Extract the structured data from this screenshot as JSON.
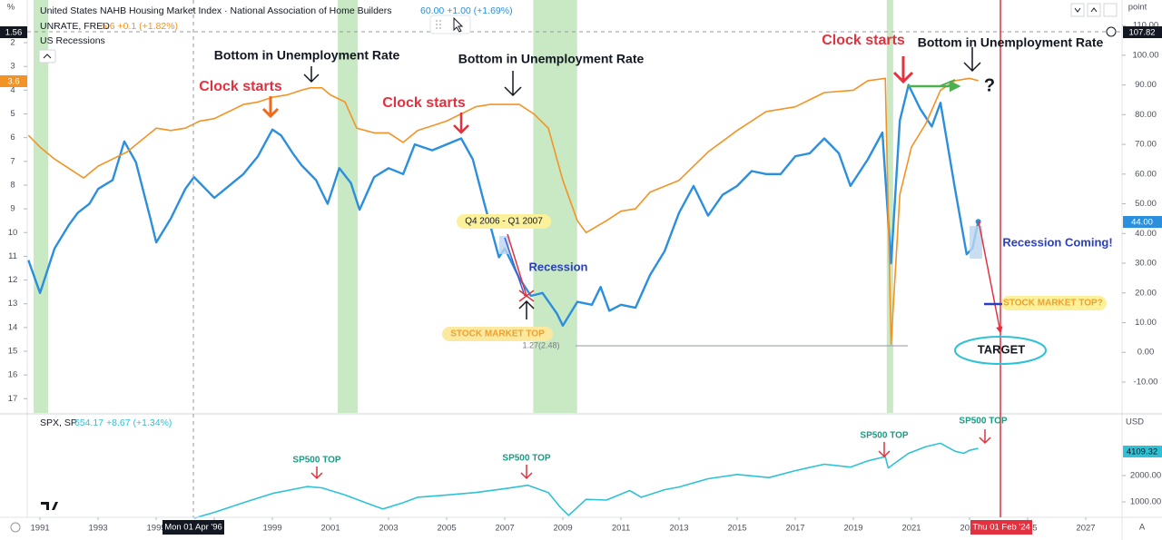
{
  "chart_data": [
    {
      "type": "line",
      "series": [
        {
          "name": "United States NAHB Housing Market Index · National Association of Home Builders",
          "color": "#2b8fde",
          "axis": "y",
          "x": [
            1990.6,
            1991.0,
            1991.5,
            1992.0,
            1992.3,
            1992.7,
            1993.0,
            1993.5,
            1993.9,
            1994.3,
            1994.8,
            1995.0,
            1995.5,
            1996.0,
            1996.3,
            1996.7,
            1997.0,
            1997.5,
            1998.0,
            1998.5,
            1999.0,
            1999.3,
            1999.7,
            2000.0,
            2000.5,
            2000.9,
            2001.3,
            2001.7,
            2002.0,
            2002.5,
            2003.0,
            2003.5,
            2003.9,
            2004.5,
            2005.0,
            2005.5,
            2005.9,
            2006.3,
            2006.8,
            2007.0,
            2007.5,
            2007.9,
            2008.3,
            2008.8,
            2009.0,
            2009.5,
            2010.0,
            2010.3,
            2010.6,
            2011.0,
            2011.5,
            2012.0,
            2012.5,
            2013.0,
            2013.5,
            2014.0,
            2014.5,
            2015.0,
            2015.5,
            2016.0,
            2016.5,
            2017.0,
            2017.5,
            2018.0,
            2018.5,
            2018.9,
            2019.5,
            2020.0,
            2020.3,
            2020.6,
            2020.9,
            2021.3,
            2021.7,
            2022.0,
            2022.5,
            2022.9,
            2023.1,
            2023.3
          ],
          "values": [
            31,
            20,
            35,
            43,
            47,
            50,
            55,
            58,
            71,
            64,
            45,
            37,
            45,
            55,
            59,
            55,
            52,
            56,
            60,
            66,
            75,
            73,
            67,
            63,
            58,
            50,
            62,
            57,
            48,
            59,
            62,
            60,
            70,
            68,
            70,
            72,
            65,
            50,
            32,
            35,
            25,
            19,
            20,
            13,
            9,
            17,
            16,
            22,
            14,
            16,
            15,
            26,
            34,
            47,
            56,
            46,
            53,
            56,
            61,
            60,
            60,
            66,
            67,
            72,
            67,
            56,
            65,
            74,
            30,
            78,
            90,
            82,
            76,
            84,
            55,
            33,
            35,
            44
          ]
        },
        {
          "name": "UNRATE, FRED",
          "color": "#f39325",
          "axis": "y2",
          "x": [
            1990.6,
            1991.0,
            1991.5,
            1992.0,
            1992.5,
            1993.0,
            1993.5,
            1994.0,
            1994.5,
            1995.0,
            1995.5,
            1996.0,
            1996.5,
            1997.0,
            1997.5,
            1998.0,
            1998.5,
            1999.0,
            1999.5,
            2000.0,
            2000.3,
            2000.7,
            2001.0,
            2001.5,
            2001.9,
            2002.5,
            2003.0,
            2003.5,
            2004.0,
            2004.5,
            2005.0,
            2005.5,
            2006.0,
            2006.5,
            2007.0,
            2007.5,
            2008.0,
            2008.5,
            2009.0,
            2009.5,
            2009.8,
            2010.5,
            2011.0,
            2011.5,
            2012.0,
            2013.0,
            2014.0,
            2015.0,
            2016.0,
            2017.0,
            2018.0,
            2019.0,
            2019.5,
            2020.1,
            2020.3,
            2020.6,
            2021.0,
            2021.5,
            2022.0,
            2022.5,
            2023.0,
            2023.3
          ],
          "values": [
            5.9,
            6.4,
            6.9,
            7.3,
            7.7,
            7.2,
            6.9,
            6.6,
            6.1,
            5.6,
            5.7,
            5.6,
            5.3,
            5.2,
            4.9,
            4.6,
            4.5,
            4.3,
            4.2,
            4.0,
            3.9,
            3.9,
            4.2,
            4.5,
            5.6,
            5.8,
            5.8,
            6.2,
            5.7,
            5.5,
            5.3,
            5.0,
            4.7,
            4.6,
            4.6,
            4.6,
            5.0,
            5.6,
            7.8,
            9.5,
            10.0,
            9.5,
            9.1,
            9.0,
            8.3,
            7.8,
            6.6,
            5.7,
            4.9,
            4.7,
            4.1,
            4.0,
            3.6,
            3.5,
            14.7,
            8.4,
            6.4,
            5.4,
            4.0,
            3.6,
            3.5,
            3.6
          ]
        }
      ],
      "legend_values": [
        "60.00 +1.00 (+1.69%)",
        "5.6 +0.1 (+1.82%)"
      ],
      "recessions_label": "US Recessions",
      "recessions": [
        [
          1990.78,
          1991.28
        ],
        [
          2001.25,
          2001.94
        ],
        [
          2007.98,
          2009.49
        ],
        [
          2020.15,
          2020.37
        ]
      ],
      "recession_color": "#c8e9c4",
      "xlim": [
        1990.56,
        2028.25
      ],
      "xticks": [
        1991,
        1993,
        1995,
        1997,
        1999,
        2001,
        2003,
        2005,
        2007,
        2009,
        2011,
        2013,
        2015,
        2017,
        2019,
        2021,
        2023,
        2025,
        2027
      ],
      "ylim": [
        -20.4,
        118.6
      ],
      "yticks": [
        {
          "value": -10,
          "label": "-10.00"
        },
        {
          "value": 0,
          "label": "0.00"
        },
        {
          "value": 10,
          "label": "10.00"
        },
        {
          "value": 20,
          "label": "20.00"
        },
        {
          "value": 30,
          "label": "30.00"
        },
        {
          "value": 40,
          "label": "40.00"
        },
        {
          "value": 50,
          "label": "50.00"
        },
        {
          "value": 60,
          "label": "60.00"
        },
        {
          "value": 70,
          "label": "70.00"
        },
        {
          "value": 80,
          "label": "80.00"
        },
        {
          "value": 90,
          "label": "90.00"
        },
        {
          "value": 100,
          "label": "100.00"
        },
        {
          "value": 110,
          "label": "110.00"
        }
      ],
      "y2lim": [
        17.6,
        0.2
      ],
      "y2ticks": [
        2,
        3,
        4,
        5,
        6,
        7,
        8,
        9,
        10,
        11,
        12,
        13,
        14,
        15,
        16,
        17
      ],
      "ylabel": "point",
      "y2label": "%",
      "price_labels": [
        "107.82",
        "44.00",
        "3.6",
        "1.56"
      ],
      "date_labels": [
        "Mon 01 Apr '96",
        "Thu 01 Feb '24"
      ],
      "fib_label": "1.27(2.48)",
      "annotations": [
        "Bottom in Unemployment Rate",
        "Bottom in Unemployment Rate",
        "Bottom in Unemployment Rate",
        "Clock starts",
        "Clock starts",
        "Clock starts",
        "Q4 2006 - Q1 2007",
        "Recession",
        "STOCK MARKET TOP",
        "?",
        "Recession Coming!",
        "STOCK MARKET TOP?",
        "TARGET"
      ]
    },
    {
      "type": "line",
      "log": true,
      "series": [
        {
          "name": "SPX, SP",
          "color": "#2ec2d6",
          "x": [
            1996.3,
            1997.0,
            1998.0,
            1999.0,
            2000.2,
            2000.7,
            2001.5,
            2002.5,
            2002.8,
            2003.5,
            2004.0,
            2005.0,
            2006.0,
            2007.0,
            2007.8,
            2008.5,
            2008.9,
            2009.2,
            2009.8,
            2010.5,
            2011.3,
            2011.7,
            2012.5,
            2013.0,
            2014.0,
            2015.0,
            2016.1,
            2017.0,
            2018.0,
            2018.9,
            2019.5,
            2020.1,
            2020.2,
            2020.9,
            2021.5,
            2022.0,
            2022.5,
            2022.8,
            2023.0,
            2023.3
          ],
          "values": [
            650,
            760,
            980,
            1250,
            1500,
            1450,
            1200,
            900,
            830,
            980,
            1130,
            1200,
            1280,
            1420,
            1550,
            1280,
            880,
            700,
            1070,
            1050,
            1350,
            1130,
            1380,
            1480,
            1840,
            2060,
            1900,
            2280,
            2700,
            2500,
            2950,
            3300,
            2450,
            3600,
            4300,
            4700,
            3800,
            3600,
            3900,
            4109.32
          ]
        }
      ],
      "legend_values": [
        "654.17 +8.67 (+1.34%)"
      ],
      "ylim": [
        666,
        10200
      ],
      "yticks": [
        {
          "value": 1000,
          "label": "1000.00"
        },
        {
          "value": 2000,
          "label": "2000.00"
        }
      ],
      "ylabel": "USD",
      "price_labels": [
        "4109.32"
      ],
      "annotations": [
        "SP500 TOP",
        "SP500 TOP",
        "SP500 TOP",
        "SP500 TOP"
      ]
    }
  ]
}
